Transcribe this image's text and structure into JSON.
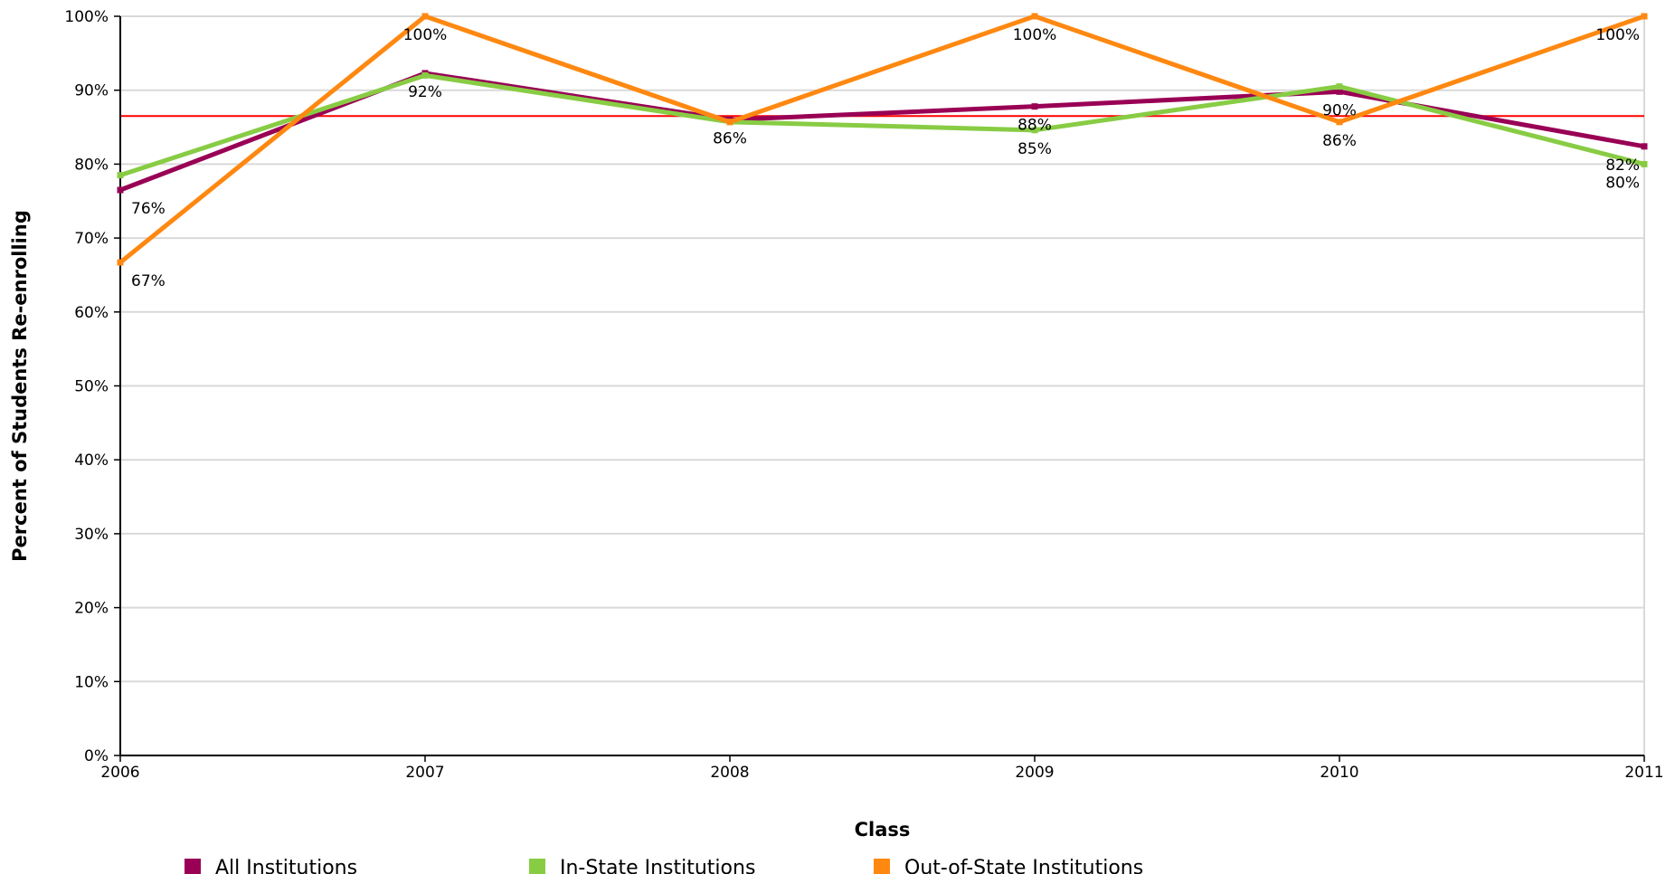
{
  "chart_data": {
    "type": "line",
    "title": "",
    "xlabel": "Class",
    "ylabel": "Percent of Students Re-enrolling",
    "categories": [
      "2006",
      "2007",
      "2008",
      "2009",
      "2010",
      "2011"
    ],
    "ylim": [
      0,
      100
    ],
    "yticks": [
      "0%",
      "10%",
      "20%",
      "30%",
      "40%",
      "50%",
      "60%",
      "70%",
      "80%",
      "90%",
      "100%"
    ],
    "grid": true,
    "legend_position": "bottom",
    "reference_line": {
      "value": 86.5,
      "color": "#ff0000"
    },
    "series": [
      {
        "name": "All Institutions",
        "color": "#990055",
        "values": [
          76.5,
          92.3,
          86.0,
          87.8,
          89.8,
          82.4
        ],
        "labels": [
          "76%",
          "92%",
          "86%",
          "88%",
          "90%",
          "82%"
        ]
      },
      {
        "name": "In-State Institutions",
        "color": "#88cc44",
        "values": [
          78.5,
          92.0,
          85.7,
          84.6,
          90.5,
          80.0
        ],
        "labels": [
          "",
          "",
          "",
          "85%",
          "",
          "80%"
        ]
      },
      {
        "name": "Out-of-State Institutions",
        "color": "#ff8811",
        "values": [
          66.7,
          100,
          85.7,
          100,
          85.7,
          100
        ],
        "labels": [
          "67%",
          "100%",
          "",
          "100%",
          "86%",
          "100%"
        ]
      }
    ]
  }
}
